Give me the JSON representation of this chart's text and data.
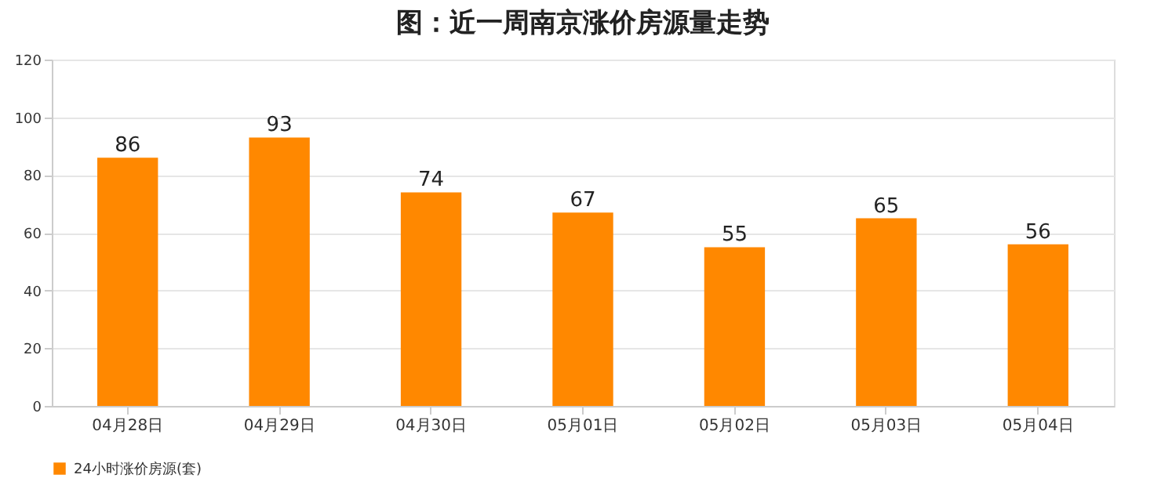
{
  "chart_data": {
    "type": "bar",
    "title": "图：近一周南京涨价房源量走势",
    "categories": [
      "04月28日",
      "04月29日",
      "04月30日",
      "05月01日",
      "05月02日",
      "05月03日",
      "05月04日"
    ],
    "series": [
      {
        "name": "24小时涨价房源(套)",
        "color": "#ff8800",
        "values": [
          86,
          93,
          74,
          67,
          55,
          65,
          56
        ]
      }
    ],
    "ylim": [
      0,
      120
    ],
    "yticks": [
      0,
      20,
      40,
      60,
      80,
      100,
      120
    ],
    "grid": "y",
    "legend": "bottom",
    "data_labels": true
  }
}
